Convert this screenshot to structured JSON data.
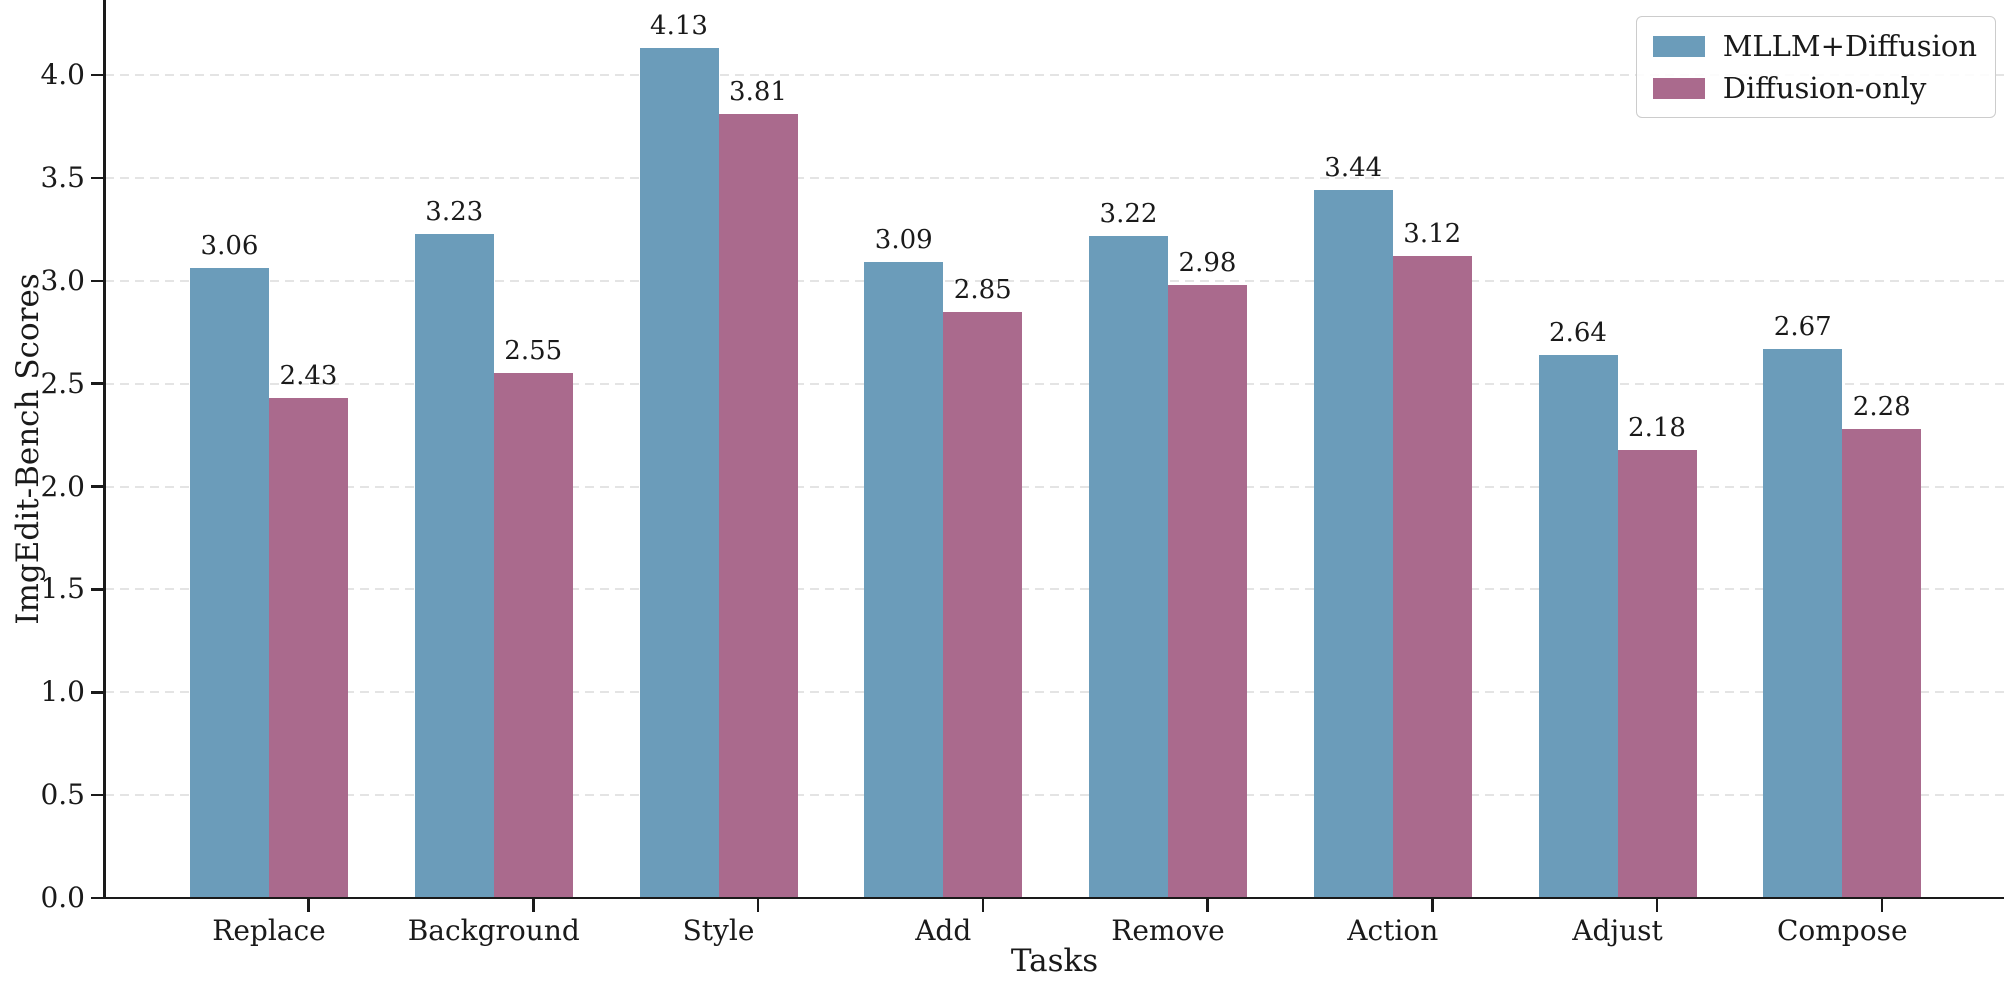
{
  "chart_data": {
    "type": "bar",
    "title": "",
    "xlabel": "Tasks",
    "ylabel": "ImgEdit-Bench Scores",
    "categories": [
      "Replace",
      "Background",
      "Style",
      "Add",
      "Remove",
      "Action",
      "Adjust",
      "Compose"
    ],
    "series": [
      {
        "name": "MLLM+Diffusion",
        "color": "#6B9CBA",
        "values": [
          3.06,
          3.23,
          4.13,
          3.09,
          3.22,
          3.44,
          2.64,
          2.67
        ]
      },
      {
        "name": "Diffusion-only",
        "color": "#AA6A8D",
        "values": [
          2.43,
          2.55,
          3.81,
          2.85,
          2.98,
          3.12,
          2.18,
          2.28
        ]
      }
    ],
    "ylim": [
      0,
      4.365
    ],
    "yticks": [
      0.0,
      0.5,
      1.0,
      1.5,
      2.0,
      2.5,
      3.0,
      3.5,
      4.0
    ],
    "ytick_labels": [
      "0.0",
      "0.5",
      "1.0",
      "1.5",
      "2.0",
      "2.5",
      "3.0",
      "3.5",
      "4.0"
    ],
    "grid": "horizontal-dashed",
    "gridline_color": "#e4e4e4",
    "spine_color": "#1a1a1a",
    "value_labels": true,
    "value_label_decimals": 2,
    "legend_position": "upper-right",
    "legend_border_color": "#cccccc"
  }
}
